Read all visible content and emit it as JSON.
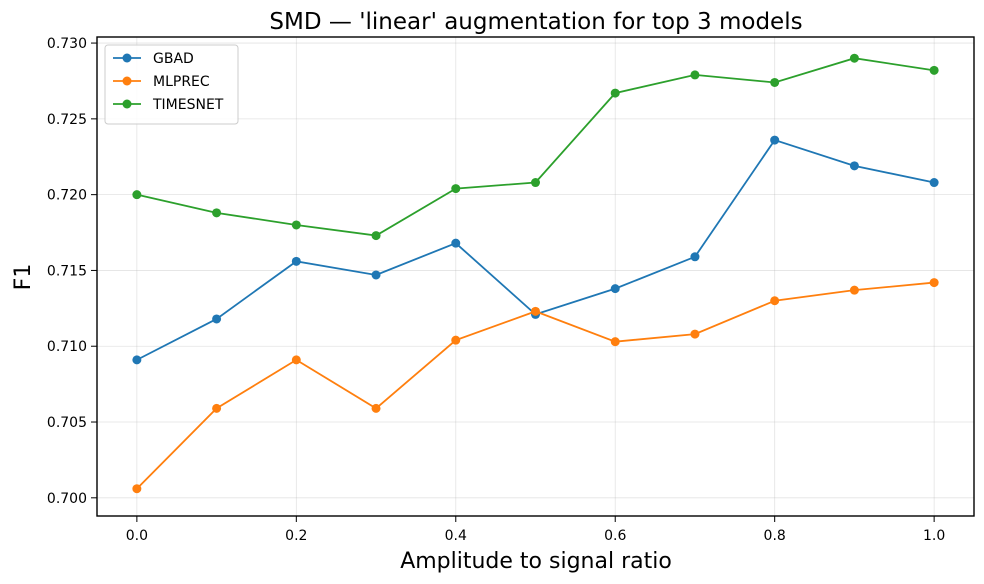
{
  "chart_data": {
    "type": "line",
    "title": "SMD — 'linear' augmentation for top 3 models",
    "xlabel": "Amplitude to signal ratio",
    "ylabel": "F1",
    "x": [
      0.0,
      0.1,
      0.2,
      0.3,
      0.4,
      0.5,
      0.6,
      0.7,
      0.8,
      0.9,
      1.0
    ],
    "xlim": [
      -0.05,
      1.05
    ],
    "ylim": [
      0.6988,
      0.7304
    ],
    "xticks": [
      0.0,
      0.2,
      0.4,
      0.6,
      0.8,
      1.0
    ],
    "xtick_labels": [
      "0.0",
      "0.2",
      "0.4",
      "0.6",
      "0.8",
      "1.0"
    ],
    "yticks": [
      0.7,
      0.705,
      0.71,
      0.715,
      0.72,
      0.725,
      0.73
    ],
    "ytick_labels": [
      "0.700",
      "0.705",
      "0.710",
      "0.715",
      "0.720",
      "0.725",
      "0.730"
    ],
    "grid": true,
    "legend_position": "top-left",
    "series": [
      {
        "name": "GBAD",
        "color": "#1f77b4",
        "values": [
          0.7091,
          0.7118,
          0.7156,
          0.7147,
          0.7168,
          0.7121,
          0.7138,
          0.7159,
          0.7236,
          0.7219,
          0.7208
        ]
      },
      {
        "name": "MLPREC",
        "color": "#ff7f0e",
        "values": [
          0.7006,
          0.7059,
          0.7091,
          0.7059,
          0.7104,
          0.7123,
          0.7103,
          0.7108,
          0.713,
          0.7137,
          0.7142
        ]
      },
      {
        "name": "TIMESNET",
        "color": "#2ca02c",
        "values": [
          0.72,
          0.7188,
          0.718,
          0.7173,
          0.7204,
          0.7208,
          0.7267,
          0.7279,
          0.7274,
          0.729,
          0.7282
        ]
      }
    ]
  }
}
